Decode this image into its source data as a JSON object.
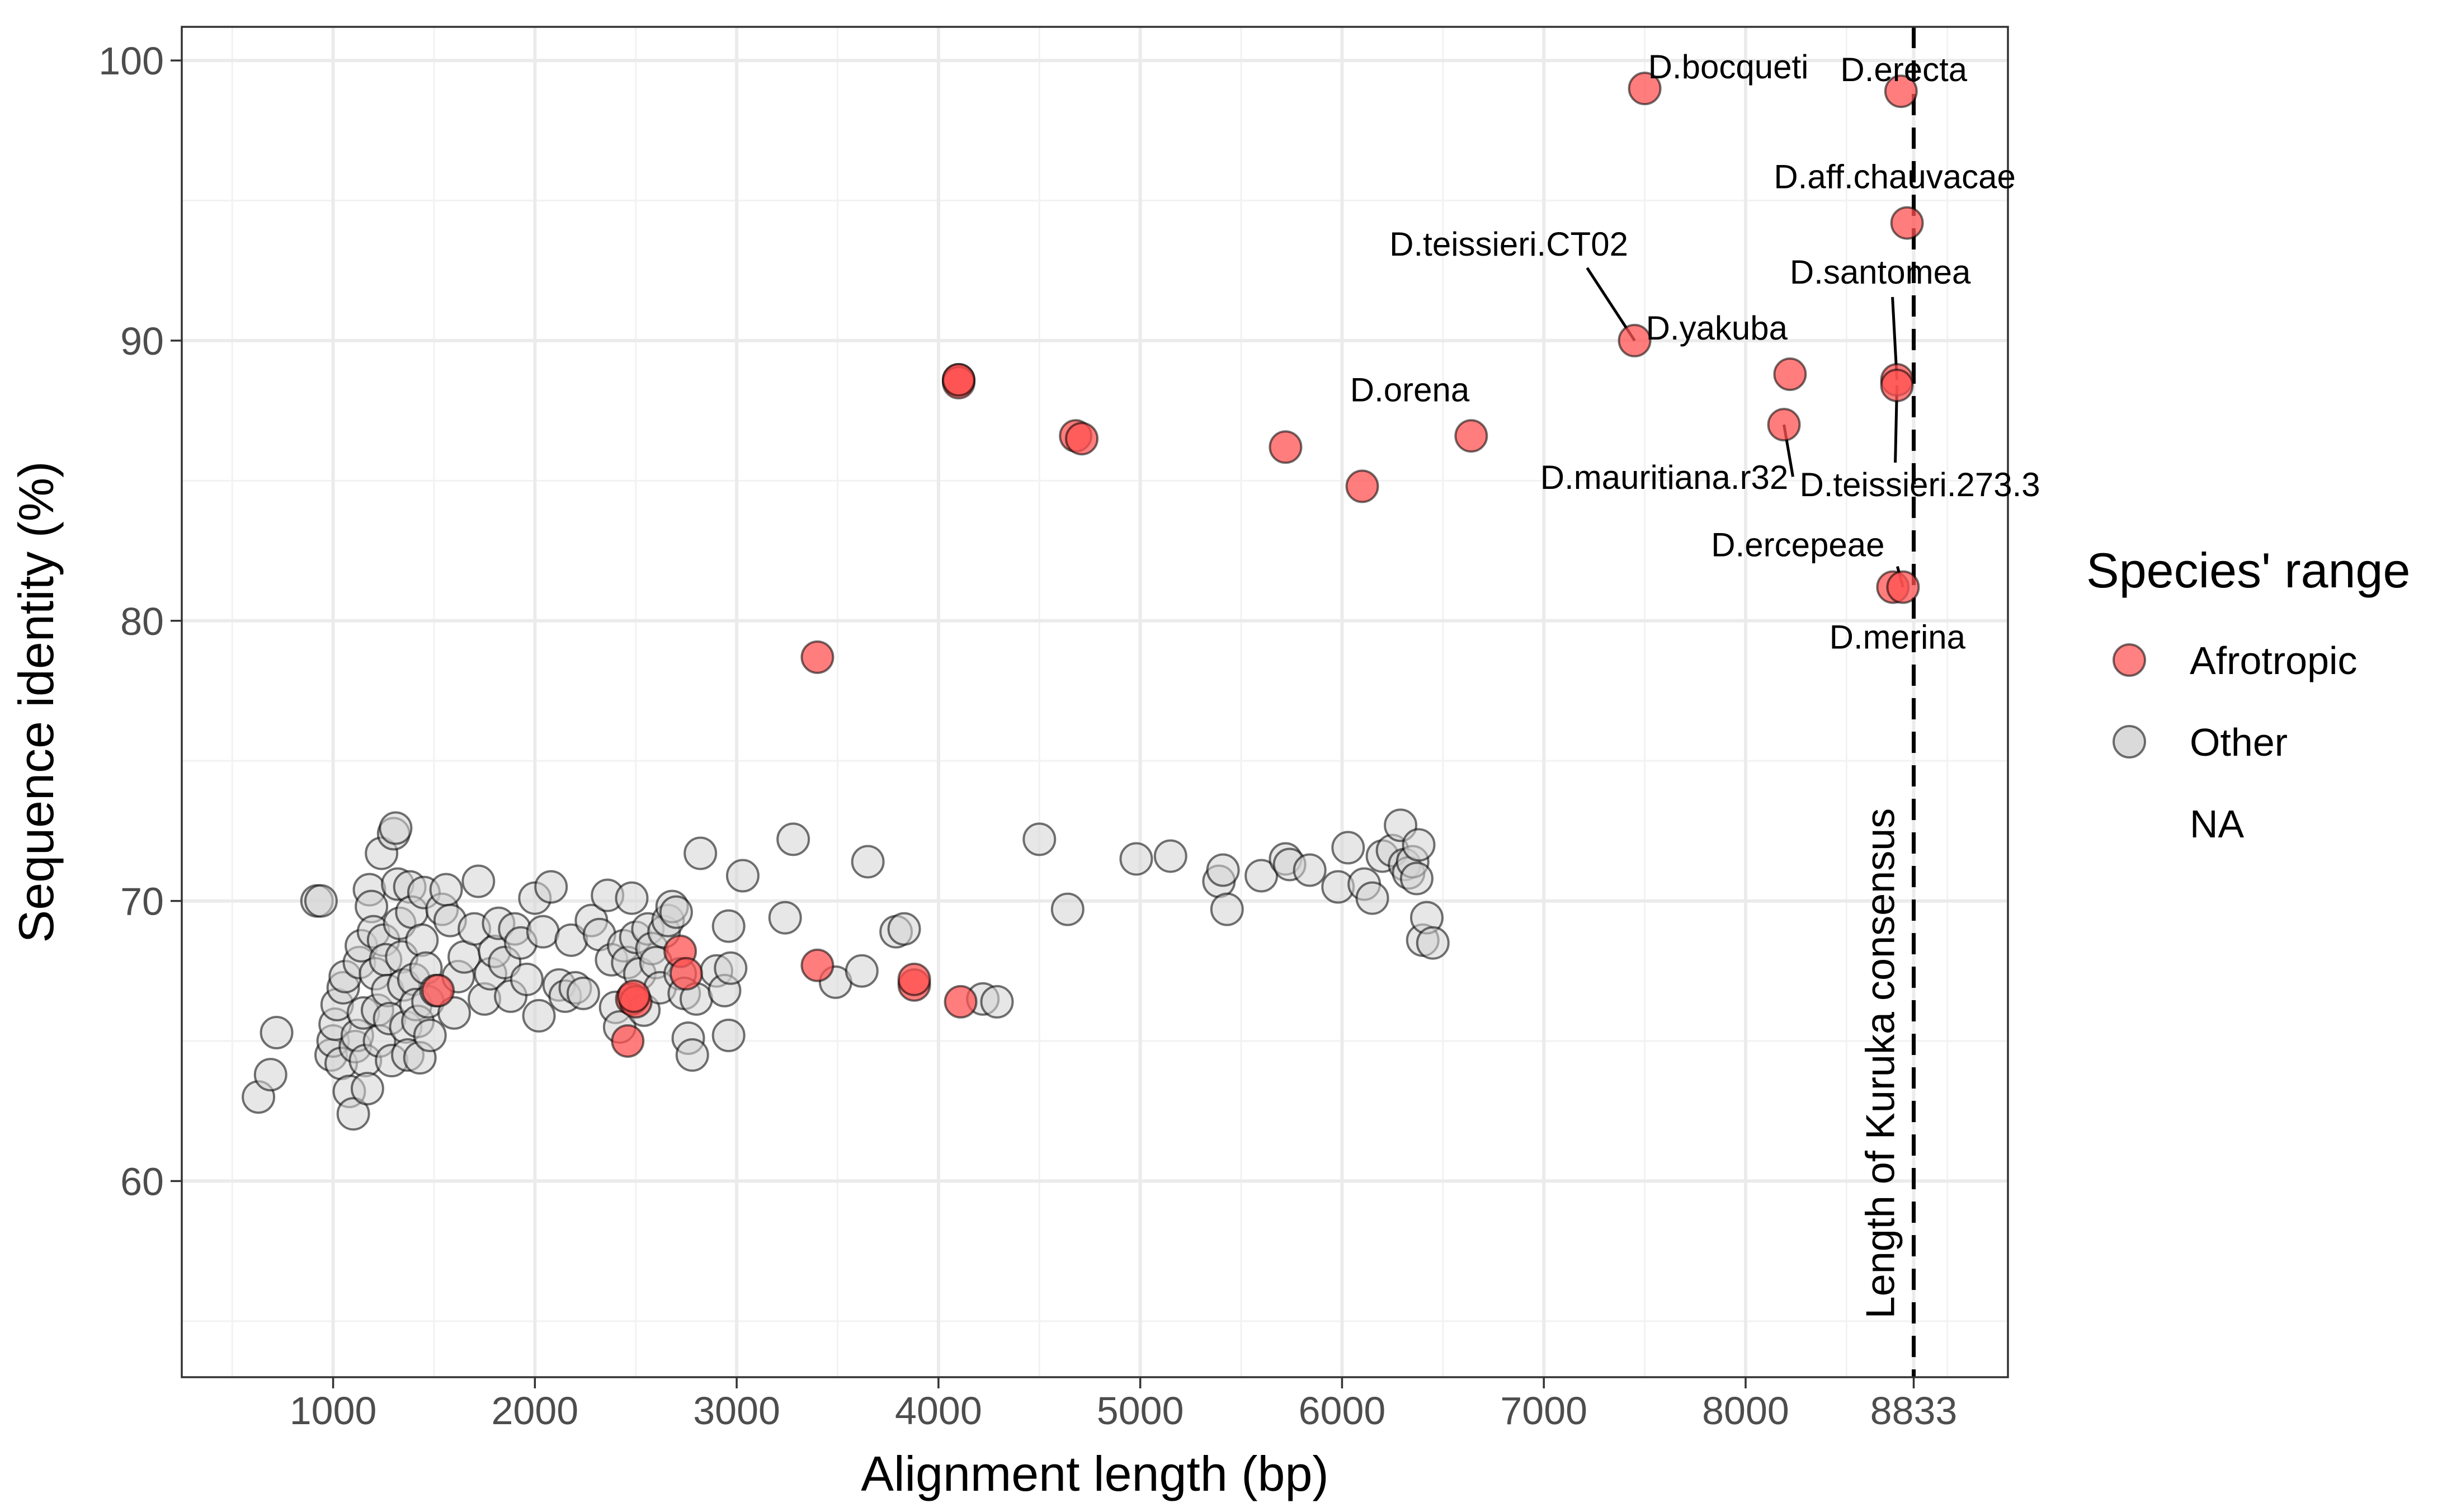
{
  "chart_data": {
    "type": "scatter",
    "xlabel": "Alignment length (bp)",
    "ylabel": "Sequence identity (%)",
    "xlim": [
      250,
      9300
    ],
    "ylim": [
      53,
      101.2
    ],
    "x_ticks": [
      1000,
      2000,
      3000,
      4000,
      5000,
      6000,
      7000,
      8000,
      8833
    ],
    "x_tick_labels": [
      "1000",
      "2000",
      "3000",
      "4000",
      "5000",
      "6000",
      "7000",
      "8000",
      "8833"
    ],
    "y_ticks": [
      60,
      70,
      80,
      90,
      100
    ],
    "y_tick_labels": [
      "60",
      "70",
      "80",
      "90",
      "100"
    ],
    "x_minor_ticks": [
      500,
      1500,
      2500,
      3500,
      4500,
      5500,
      6500,
      7500,
      8500,
      9000
    ],
    "y_minor_ticks": [
      55,
      65,
      75,
      85,
      95
    ],
    "grid": true,
    "reference_line": {
      "x": 8833,
      "style": "dashed",
      "label": "Length of Kuruka consensus"
    },
    "legend": {
      "title": "Species' range",
      "position": "right",
      "entries": [
        {
          "label": "Afrotropic",
          "color": "#ff6b6b"
        },
        {
          "label": "Other",
          "color": "#d3d3d3"
        },
        {
          "label": "NA",
          "color": ""
        }
      ]
    },
    "series": [
      {
        "name": "Afrotropic",
        "color": "#ff5252",
        "points": [
          [
            7500,
            99.0
          ],
          [
            8770,
            98.9
          ],
          [
            8800,
            94.2
          ],
          [
            7450,
            90.0
          ],
          [
            8220,
            88.8
          ],
          [
            8750,
            88.6
          ],
          [
            8750,
            88.4
          ],
          [
            4100,
            88.6
          ],
          [
            4100,
            88.5
          ],
          [
            4100,
            88.6
          ],
          [
            4680,
            86.6
          ],
          [
            4710,
            86.5
          ],
          [
            5720,
            86.2
          ],
          [
            6640,
            86.6
          ],
          [
            6100,
            84.8
          ],
          [
            8190,
            87.0
          ],
          [
            8730,
            81.2
          ],
          [
            8780,
            81.2
          ],
          [
            3400,
            78.7
          ],
          [
            3400,
            67.7
          ],
          [
            3880,
            67.0
          ],
          [
            3880,
            67.2
          ],
          [
            4110,
            66.4
          ],
          [
            2480,
            66.5
          ],
          [
            2500,
            66.4
          ],
          [
            2490,
            66.6
          ],
          [
            2460,
            65.0
          ],
          [
            2720,
            68.2
          ],
          [
            2750,
            67.4
          ],
          [
            1520,
            66.8
          ]
        ]
      },
      {
        "name": "Other",
        "color": "#d3d3d3",
        "points": [
          [
            630,
            63.0
          ],
          [
            690,
            63.8
          ],
          [
            720,
            65.3
          ],
          [
            920,
            70.0
          ],
          [
            940,
            70.0
          ],
          [
            990,
            64.5
          ],
          [
            1000,
            65.0
          ],
          [
            1010,
            65.6
          ],
          [
            1020,
            66.3
          ],
          [
            1040,
            64.2
          ],
          [
            1050,
            66.9
          ],
          [
            1060,
            67.3
          ],
          [
            1080,
            63.2
          ],
          [
            1100,
            62.4
          ],
          [
            1110,
            64.8
          ],
          [
            1120,
            65.2
          ],
          [
            1130,
            67.8
          ],
          [
            1140,
            68.4
          ],
          [
            1150,
            66.0
          ],
          [
            1160,
            64.3
          ],
          [
            1170,
            63.3
          ],
          [
            1180,
            70.4
          ],
          [
            1190,
            69.8
          ],
          [
            1200,
            68.9
          ],
          [
            1210,
            67.4
          ],
          [
            1220,
            66.1
          ],
          [
            1230,
            65.0
          ],
          [
            1240,
            71.7
          ],
          [
            1250,
            68.6
          ],
          [
            1260,
            67.9
          ],
          [
            1270,
            66.8
          ],
          [
            1280,
            65.8
          ],
          [
            1290,
            64.3
          ],
          [
            1300,
            72.4
          ],
          [
            1310,
            72.6
          ],
          [
            1320,
            70.6
          ],
          [
            1330,
            69.2
          ],
          [
            1340,
            68.0
          ],
          [
            1350,
            67.0
          ],
          [
            1360,
            65.5
          ],
          [
            1370,
            64.5
          ],
          [
            1380,
            70.5
          ],
          [
            1390,
            69.6
          ],
          [
            1400,
            67.2
          ],
          [
            1410,
            66.3
          ],
          [
            1420,
            65.7
          ],
          [
            1430,
            64.4
          ],
          [
            1440,
            68.6
          ],
          [
            1450,
            70.3
          ],
          [
            1460,
            67.6
          ],
          [
            1470,
            66.4
          ],
          [
            1480,
            65.2
          ],
          [
            1510,
            66.8
          ],
          [
            1540,
            69.7
          ],
          [
            1560,
            70.4
          ],
          [
            1580,
            69.3
          ],
          [
            1600,
            66.0
          ],
          [
            1620,
            67.3
          ],
          [
            1650,
            68.0
          ],
          [
            1700,
            69.0
          ],
          [
            1720,
            70.7
          ],
          [
            1750,
            66.5
          ],
          [
            1780,
            67.4
          ],
          [
            1800,
            68.2
          ],
          [
            1820,
            69.2
          ],
          [
            1850,
            67.8
          ],
          [
            1880,
            66.6
          ],
          [
            1900,
            69.0
          ],
          [
            1930,
            68.5
          ],
          [
            1960,
            67.2
          ],
          [
            2000,
            70.1
          ],
          [
            2020,
            65.9
          ],
          [
            2040,
            68.9
          ],
          [
            2080,
            70.5
          ],
          [
            2120,
            67.0
          ],
          [
            2150,
            66.6
          ],
          [
            2180,
            68.6
          ],
          [
            2200,
            66.9
          ],
          [
            2240,
            66.7
          ],
          [
            2280,
            69.3
          ],
          [
            2320,
            68.8
          ],
          [
            2360,
            70.2
          ],
          [
            2380,
            67.9
          ],
          [
            2400,
            66.2
          ],
          [
            2420,
            65.5
          ],
          [
            2440,
            68.4
          ],
          [
            2460,
            67.8
          ],
          [
            2480,
            70.1
          ],
          [
            2500,
            68.7
          ],
          [
            2520,
            67.4
          ],
          [
            2540,
            66.1
          ],
          [
            2560,
            69.0
          ],
          [
            2580,
            68.3
          ],
          [
            2600,
            67.8
          ],
          [
            2620,
            66.9
          ],
          [
            2640,
            68.9
          ],
          [
            2660,
            69.3
          ],
          [
            2680,
            69.8
          ],
          [
            2700,
            69.6
          ],
          [
            2720,
            67.4
          ],
          [
            2740,
            66.7
          ],
          [
            2760,
            65.1
          ],
          [
            2780,
            64.5
          ],
          [
            2800,
            66.5
          ],
          [
            2820,
            71.7
          ],
          [
            2900,
            67.5
          ],
          [
            2940,
            66.8
          ],
          [
            2960,
            65.2
          ],
          [
            2960,
            69.1
          ],
          [
            2970,
            67.6
          ],
          [
            3030,
            70.9
          ],
          [
            3240,
            69.4
          ],
          [
            3280,
            72.2
          ],
          [
            3490,
            67.1
          ],
          [
            3620,
            67.5
          ],
          [
            3650,
            71.4
          ],
          [
            3790,
            68.9
          ],
          [
            3830,
            69.0
          ],
          [
            4220,
            66.5
          ],
          [
            4290,
            66.4
          ],
          [
            4500,
            72.2
          ],
          [
            4640,
            69.7
          ],
          [
            4980,
            71.5
          ],
          [
            5150,
            71.6
          ],
          [
            5390,
            70.7
          ],
          [
            5410,
            71.1
          ],
          [
            5430,
            69.7
          ],
          [
            5600,
            70.9
          ],
          [
            5720,
            71.5
          ],
          [
            5740,
            71.3
          ],
          [
            5840,
            71.1
          ],
          [
            5980,
            70.5
          ],
          [
            6030,
            71.9
          ],
          [
            6110,
            70.6
          ],
          [
            6150,
            70.1
          ],
          [
            6200,
            71.6
          ],
          [
            6250,
            71.8
          ],
          [
            6290,
            72.7
          ],
          [
            6310,
            71.3
          ],
          [
            6330,
            71.0
          ],
          [
            6350,
            71.4
          ],
          [
            6370,
            70.8
          ],
          [
            6380,
            72.0
          ],
          [
            6400,
            68.6
          ],
          [
            6420,
            69.4
          ],
          [
            6450,
            68.5
          ]
        ]
      }
    ],
    "annotations": [
      {
        "text": "D.bocqueti",
        "x": 7500,
        "y": 99.0
      },
      {
        "text": "D.erecta",
        "x": 8770,
        "y": 98.9
      },
      {
        "text": "D.aff.chauvacae",
        "x": 8800,
        "y": 94.2
      },
      {
        "text": "D.teissieri.CT02",
        "x": 7450,
        "y": 90.0
      },
      {
        "text": "D.yakuba",
        "x": 7450,
        "y": 90.0
      },
      {
        "text": "D.santomea",
        "x": 8750,
        "y": 88.6
      },
      {
        "text": "D.orena",
        "x": 6100,
        "y": 84.8
      },
      {
        "text": "D.mauritiana.r32",
        "x": 8190,
        "y": 87.0
      },
      {
        "text": "D.teissieri.273.3",
        "x": 8750,
        "y": 88.4
      },
      {
        "text": "D.ercepeae",
        "x": 8780,
        "y": 81.2
      },
      {
        "text": "D.merina",
        "x": 8730,
        "y": 81.2
      }
    ]
  }
}
